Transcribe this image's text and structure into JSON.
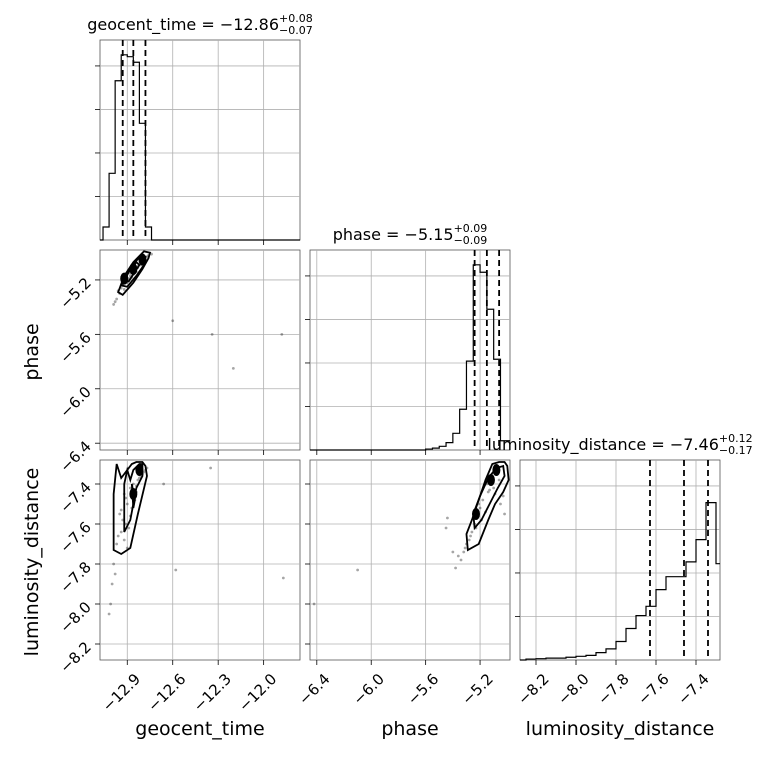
{
  "chart_data": {
    "type": "corner",
    "parameters": [
      "geocent_time",
      "phase",
      "luminosity_distance"
    ],
    "axis_labels": {
      "geocent_time": "geocent_time",
      "phase": "phase",
      "luminosity_distance": "luminosity_distance"
    },
    "ranges": {
      "geocent_time": [
        -13.08,
        -11.76
      ],
      "phase": [
        -6.45,
        -4.98
      ],
      "luminosity_distance": [
        -8.28,
        -7.28
      ]
    },
    "ticks": {
      "geocent_time": [
        -12.9,
        -12.6,
        -12.3,
        -12.0
      ],
      "phase": [
        -6.4,
        -6.0,
        -5.6,
        -5.2
      ],
      "luminosity_distance": [
        -8.2,
        -8.0,
        -7.8,
        -7.6,
        -7.4
      ]
    },
    "tick_labels": {
      "geocent_time": [
        "−12.9",
        "−12.6",
        "−12.3",
        "−12.0"
      ],
      "phase": [
        "−6.4",
        "−6.0",
        "−5.6",
        "−5.2"
      ],
      "luminosity_distance": [
        "−8.2",
        "−8.0",
        "−7.8",
        "−7.6",
        "−7.4"
      ]
    },
    "titles": [
      {
        "param": "geocent_time",
        "prefix": "geocent_time = −12.86",
        "plus": "+0.08",
        "minus": "−0.07"
      },
      {
        "param": "phase",
        "prefix": "phase = −5.15",
        "plus": "+0.09",
        "minus": "−0.09"
      },
      {
        "param": "luminosity_distance",
        "prefix": "luminosity_distance = −7.46",
        "plus": "+0.12",
        "minus": "−0.17"
      }
    ],
    "quantiles": {
      "geocent_time": [
        -12.93,
        -12.86,
        -12.78
      ],
      "phase": [
        -5.24,
        -5.15,
        -5.06
      ],
      "luminosity_distance": [
        -7.63,
        -7.46,
        -7.34
      ]
    },
    "histograms": {
      "geocent_time": {
        "edges": [
          -13.08,
          -13.06,
          -13.02,
          -12.98,
          -12.94,
          -12.9,
          -12.86,
          -12.82,
          -12.78,
          -12.74,
          -12.7,
          -12.66,
          -12.62,
          -11.76
        ],
        "values": [
          0,
          0.07,
          0.36,
          0.86,
          1.0,
          0.99,
          0.96,
          0.63,
          0.07,
          0,
          0,
          0,
          0
        ]
      },
      "phase": {
        "edges": [
          -6.45,
          -5.6,
          -5.55,
          -5.5,
          -5.45,
          -5.4,
          -5.35,
          -5.3,
          -5.25,
          -5.2,
          -5.15,
          -5.1,
          -5.05,
          -5.0,
          -4.98
        ],
        "values": [
          0,
          0.005,
          0.01,
          0.02,
          0.04,
          0.09,
          0.22,
          0.48,
          1.0,
          0.96,
          0.76,
          0.49,
          0.05,
          0.05
        ]
      },
      "luminosity_distance": {
        "edges": [
          -8.28,
          -8.25,
          -8.2,
          -8.15,
          -8.1,
          -8.05,
          -8.0,
          -7.95,
          -7.9,
          -7.85,
          -7.8,
          -7.75,
          -7.7,
          -7.65,
          -7.6,
          -7.55,
          -7.5,
          -7.45,
          -7.4,
          -7.35,
          -7.3,
          -7.28
        ],
        "values": [
          0,
          0.005,
          0.007,
          0.01,
          0.01,
          0.015,
          0.02,
          0.025,
          0.04,
          0.06,
          0.1,
          0.17,
          0.24,
          0.29,
          0.38,
          0.45,
          0.45,
          0.53,
          0.65,
          0.85,
          0.52
        ]
      }
    },
    "scatter_2d": {
      "phase_vs_geocent_time": {
        "x": [
          -12.93,
          -12.91,
          -12.9,
          -12.88,
          -12.86,
          -12.85,
          -12.83,
          -12.82,
          -12.8,
          -12.79,
          -12.95,
          -12.92,
          -12.87,
          -12.84,
          -12.81,
          -12.97,
          -12.89,
          -12.78,
          -12.77,
          -12.94,
          -12.96,
          -12.98,
          -12.9,
          -12.86,
          -12.83,
          -12.76,
          -12.74,
          -12.99,
          -12.6,
          -12.34,
          -12.2,
          -11.88,
          -12.93,
          -12.88,
          -12.8
        ],
        "y": [
          -5.24,
          -5.2,
          -5.22,
          -5.15,
          -5.12,
          -5.13,
          -5.11,
          -5.08,
          -5.06,
          -5.04,
          -5.3,
          -5.27,
          -5.18,
          -5.14,
          -5.09,
          -5.34,
          -5.19,
          -5.05,
          -5.03,
          -5.26,
          -5.28,
          -5.36,
          -5.21,
          -5.16,
          -5.1,
          -5.02,
          -5.01,
          -5.38,
          -5.5,
          -5.6,
          -5.85,
          -5.6,
          -5.23,
          -5.17,
          -5.07
        ]
      },
      "luminosity_distance_vs_geocent_time": {
        "x": [
          -12.92,
          -12.9,
          -12.88,
          -12.86,
          -12.85,
          -12.83,
          -12.8,
          -12.78,
          -12.95,
          -12.93,
          -12.91,
          -12.89,
          -12.87,
          -12.84,
          -12.82,
          -12.97,
          -12.99,
          -13.0,
          -13.01,
          -12.96,
          -12.94,
          -12.92,
          -12.9,
          -12.88,
          -12.98,
          -13.02,
          -12.81,
          -12.79,
          -12.77,
          -12.86,
          -12.84,
          -12.66,
          -12.35,
          -11.87,
          -12.58,
          -12.94,
          -12.91
        ],
        "y": [
          -7.45,
          -7.5,
          -7.42,
          -7.4,
          -7.48,
          -7.38,
          -7.35,
          -7.33,
          -7.55,
          -7.58,
          -7.6,
          -7.62,
          -7.52,
          -7.44,
          -7.37,
          -7.7,
          -7.8,
          -7.9,
          -8.0,
          -7.66,
          -7.64,
          -7.68,
          -7.72,
          -7.56,
          -7.85,
          -8.05,
          -7.36,
          -7.34,
          -7.32,
          -7.46,
          -7.41,
          -7.4,
          -7.32,
          -7.87,
          -7.83,
          -7.53,
          -7.47
        ]
      },
      "luminosity_distance_vs_phase": {
        "x": [
          -5.15,
          -5.12,
          -5.1,
          -5.08,
          -5.06,
          -5.18,
          -5.2,
          -5.22,
          -5.24,
          -5.26,
          -5.28,
          -5.3,
          -5.32,
          -5.34,
          -5.14,
          -5.11,
          -5.05,
          -5.03,
          -5.16,
          -5.19,
          -5.23,
          -5.27,
          -5.31,
          -5.02,
          -5.09,
          -5.13,
          -5.36,
          -5.4,
          -5.44,
          -6.42,
          -6.1,
          -5.45,
          -5.38,
          -5.21
        ],
        "y": [
          -7.4,
          -7.36,
          -7.42,
          -7.34,
          -7.38,
          -7.48,
          -7.52,
          -7.56,
          -7.6,
          -7.64,
          -7.68,
          -7.7,
          -7.74,
          -7.78,
          -7.44,
          -7.39,
          -7.5,
          -7.46,
          -7.54,
          -7.58,
          -7.62,
          -7.66,
          -7.72,
          -7.55,
          -7.45,
          -7.43,
          -7.76,
          -7.74,
          -7.57,
          -8.0,
          -7.83,
          -7.62,
          -7.82,
          -7.5
        ]
      }
    },
    "contours_2d": {
      "phase_vs_geocent_time": [
        {
          "x": [
            -12.96,
            -12.93,
            -12.86,
            -12.8,
            -12.76,
            -12.75,
            -12.79,
            -12.86,
            -12.92,
            -12.96
          ],
          "y": [
            -5.29,
            -5.31,
            -5.22,
            -5.12,
            -5.04,
            -5.0,
            -4.99,
            -5.07,
            -5.17,
            -5.29
          ]
        },
        {
          "x": [
            -12.94,
            -12.9,
            -12.84,
            -12.79,
            -12.78,
            -12.82,
            -12.88,
            -12.94
          ],
          "y": [
            -5.24,
            -5.25,
            -5.17,
            -5.09,
            -5.03,
            -5.03,
            -5.12,
            -5.24
          ]
        },
        {
          "x": [
            -12.92,
            -12.89,
            -12.85,
            -12.82,
            -12.84,
            -12.89,
            -12.92
          ],
          "y": [
            -5.21,
            -5.21,
            -5.14,
            -5.09,
            -5.07,
            -5.14,
            -5.21
          ]
        }
      ],
      "luminosity_distance_vs_geocent_time": [
        {
          "x": [
            -12.97,
            -12.94,
            -12.9,
            -12.87,
            -12.84,
            -12.8,
            -12.78,
            -12.77,
            -12.83,
            -12.88,
            -12.94,
            -12.99,
            -12.99,
            -12.97
          ],
          "y": [
            -7.3,
            -7.37,
            -7.33,
            -7.3,
            -7.29,
            -7.29,
            -7.31,
            -7.36,
            -7.55,
            -7.72,
            -7.75,
            -7.73,
            -7.45,
            -7.3
          ]
        },
        {
          "x": [
            -12.9,
            -12.88,
            -12.86,
            -12.82,
            -12.8,
            -12.8,
            -12.84,
            -12.88,
            -12.92,
            -12.92,
            -12.9
          ],
          "y": [
            -7.33,
            -7.38,
            -7.33,
            -7.3,
            -7.3,
            -7.36,
            -7.42,
            -7.58,
            -7.64,
            -7.4,
            -7.33
          ]
        },
        {
          "x": [
            -12.87,
            -12.86,
            -12.85,
            -12.86,
            -12.87
          ],
          "y": [
            -7.4,
            -7.44,
            -7.48,
            -7.52,
            -7.4
          ]
        }
      ],
      "luminosity_distance_vs_phase": [
        {
          "x": [
            -5.29,
            -5.3,
            -5.26,
            -5.21,
            -5.16,
            -5.11,
            -5.06,
            -5.02,
            -5.0,
            -4.99,
            -5.03,
            -5.09,
            -5.14,
            -5.21,
            -5.29
          ],
          "y": [
            -7.73,
            -7.65,
            -7.58,
            -7.48,
            -7.38,
            -7.3,
            -7.29,
            -7.29,
            -7.31,
            -7.38,
            -7.44,
            -7.5,
            -7.58,
            -7.7,
            -7.73
          ]
        },
        {
          "x": [
            -5.24,
            -5.25,
            -5.2,
            -5.14,
            -5.08,
            -5.03,
            -5.02,
            -5.07,
            -5.13,
            -5.19,
            -5.24
          ],
          "y": [
            -7.62,
            -7.55,
            -7.46,
            -7.37,
            -7.32,
            -7.31,
            -7.36,
            -7.42,
            -7.5,
            -7.58,
            -7.62
          ]
        }
      ]
    },
    "dense_cores": {
      "phase_vs_geocent_time": [
        {
          "x": -12.86,
          "y": -5.12
        },
        {
          "x": -12.92,
          "y": -5.19
        },
        {
          "x": -12.8,
          "y": -5.05
        }
      ],
      "luminosity_distance_vs_geocent_time": [
        {
          "x": -12.82,
          "y": -7.33
        },
        {
          "x": -12.86,
          "y": -7.45
        }
      ],
      "luminosity_distance_vs_phase": [
        {
          "x": -5.12,
          "y": -7.38
        },
        {
          "x": -5.23,
          "y": -7.55
        },
        {
          "x": -5.08,
          "y": -7.33
        }
      ]
    },
    "grid": true
  }
}
